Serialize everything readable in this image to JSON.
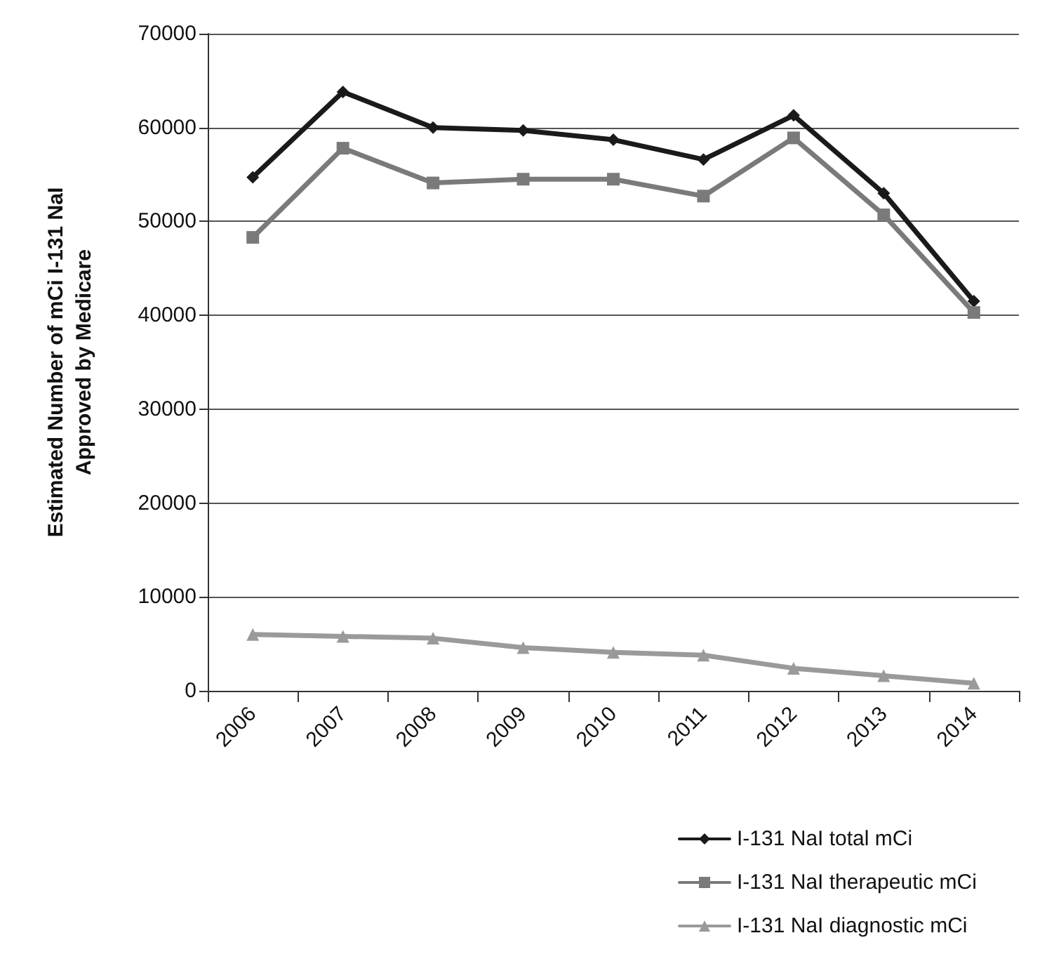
{
  "chart_data": {
    "type": "line",
    "ylabel": "Estimated Number of mCi I-131 NaI\nApproved by Medicare",
    "categories": [
      "2006",
      "2007",
      "2008",
      "2009",
      "2010",
      "2011",
      "2012",
      "2013",
      "2014"
    ],
    "series": [
      {
        "name": "I-131 NaI total mCi",
        "color": "#1a1a1a",
        "marker": "diamond",
        "values": [
          54700,
          63800,
          60000,
          59700,
          58700,
          56600,
          61300,
          53000,
          41500
        ]
      },
      {
        "name": "I-131 NaI therapeutic mCi",
        "color": "#7a7a7a",
        "marker": "square",
        "values": [
          48300,
          57800,
          54100,
          54500,
          54500,
          52700,
          58900,
          50700,
          40300
        ]
      },
      {
        "name": "I-131 NaI diagnostic mCi",
        "color": "#9a9a9a",
        "marker": "triangle",
        "values": [
          6000,
          5800,
          5600,
          4600,
          4100,
          3800,
          2400,
          1600,
          800
        ]
      }
    ],
    "ylim": [
      0,
      70000
    ],
    "yticks": [
      0,
      10000,
      20000,
      30000,
      40000,
      50000,
      60000,
      70000
    ],
    "grid": "y",
    "legend": "bottom right",
    "line_style": "solid"
  }
}
